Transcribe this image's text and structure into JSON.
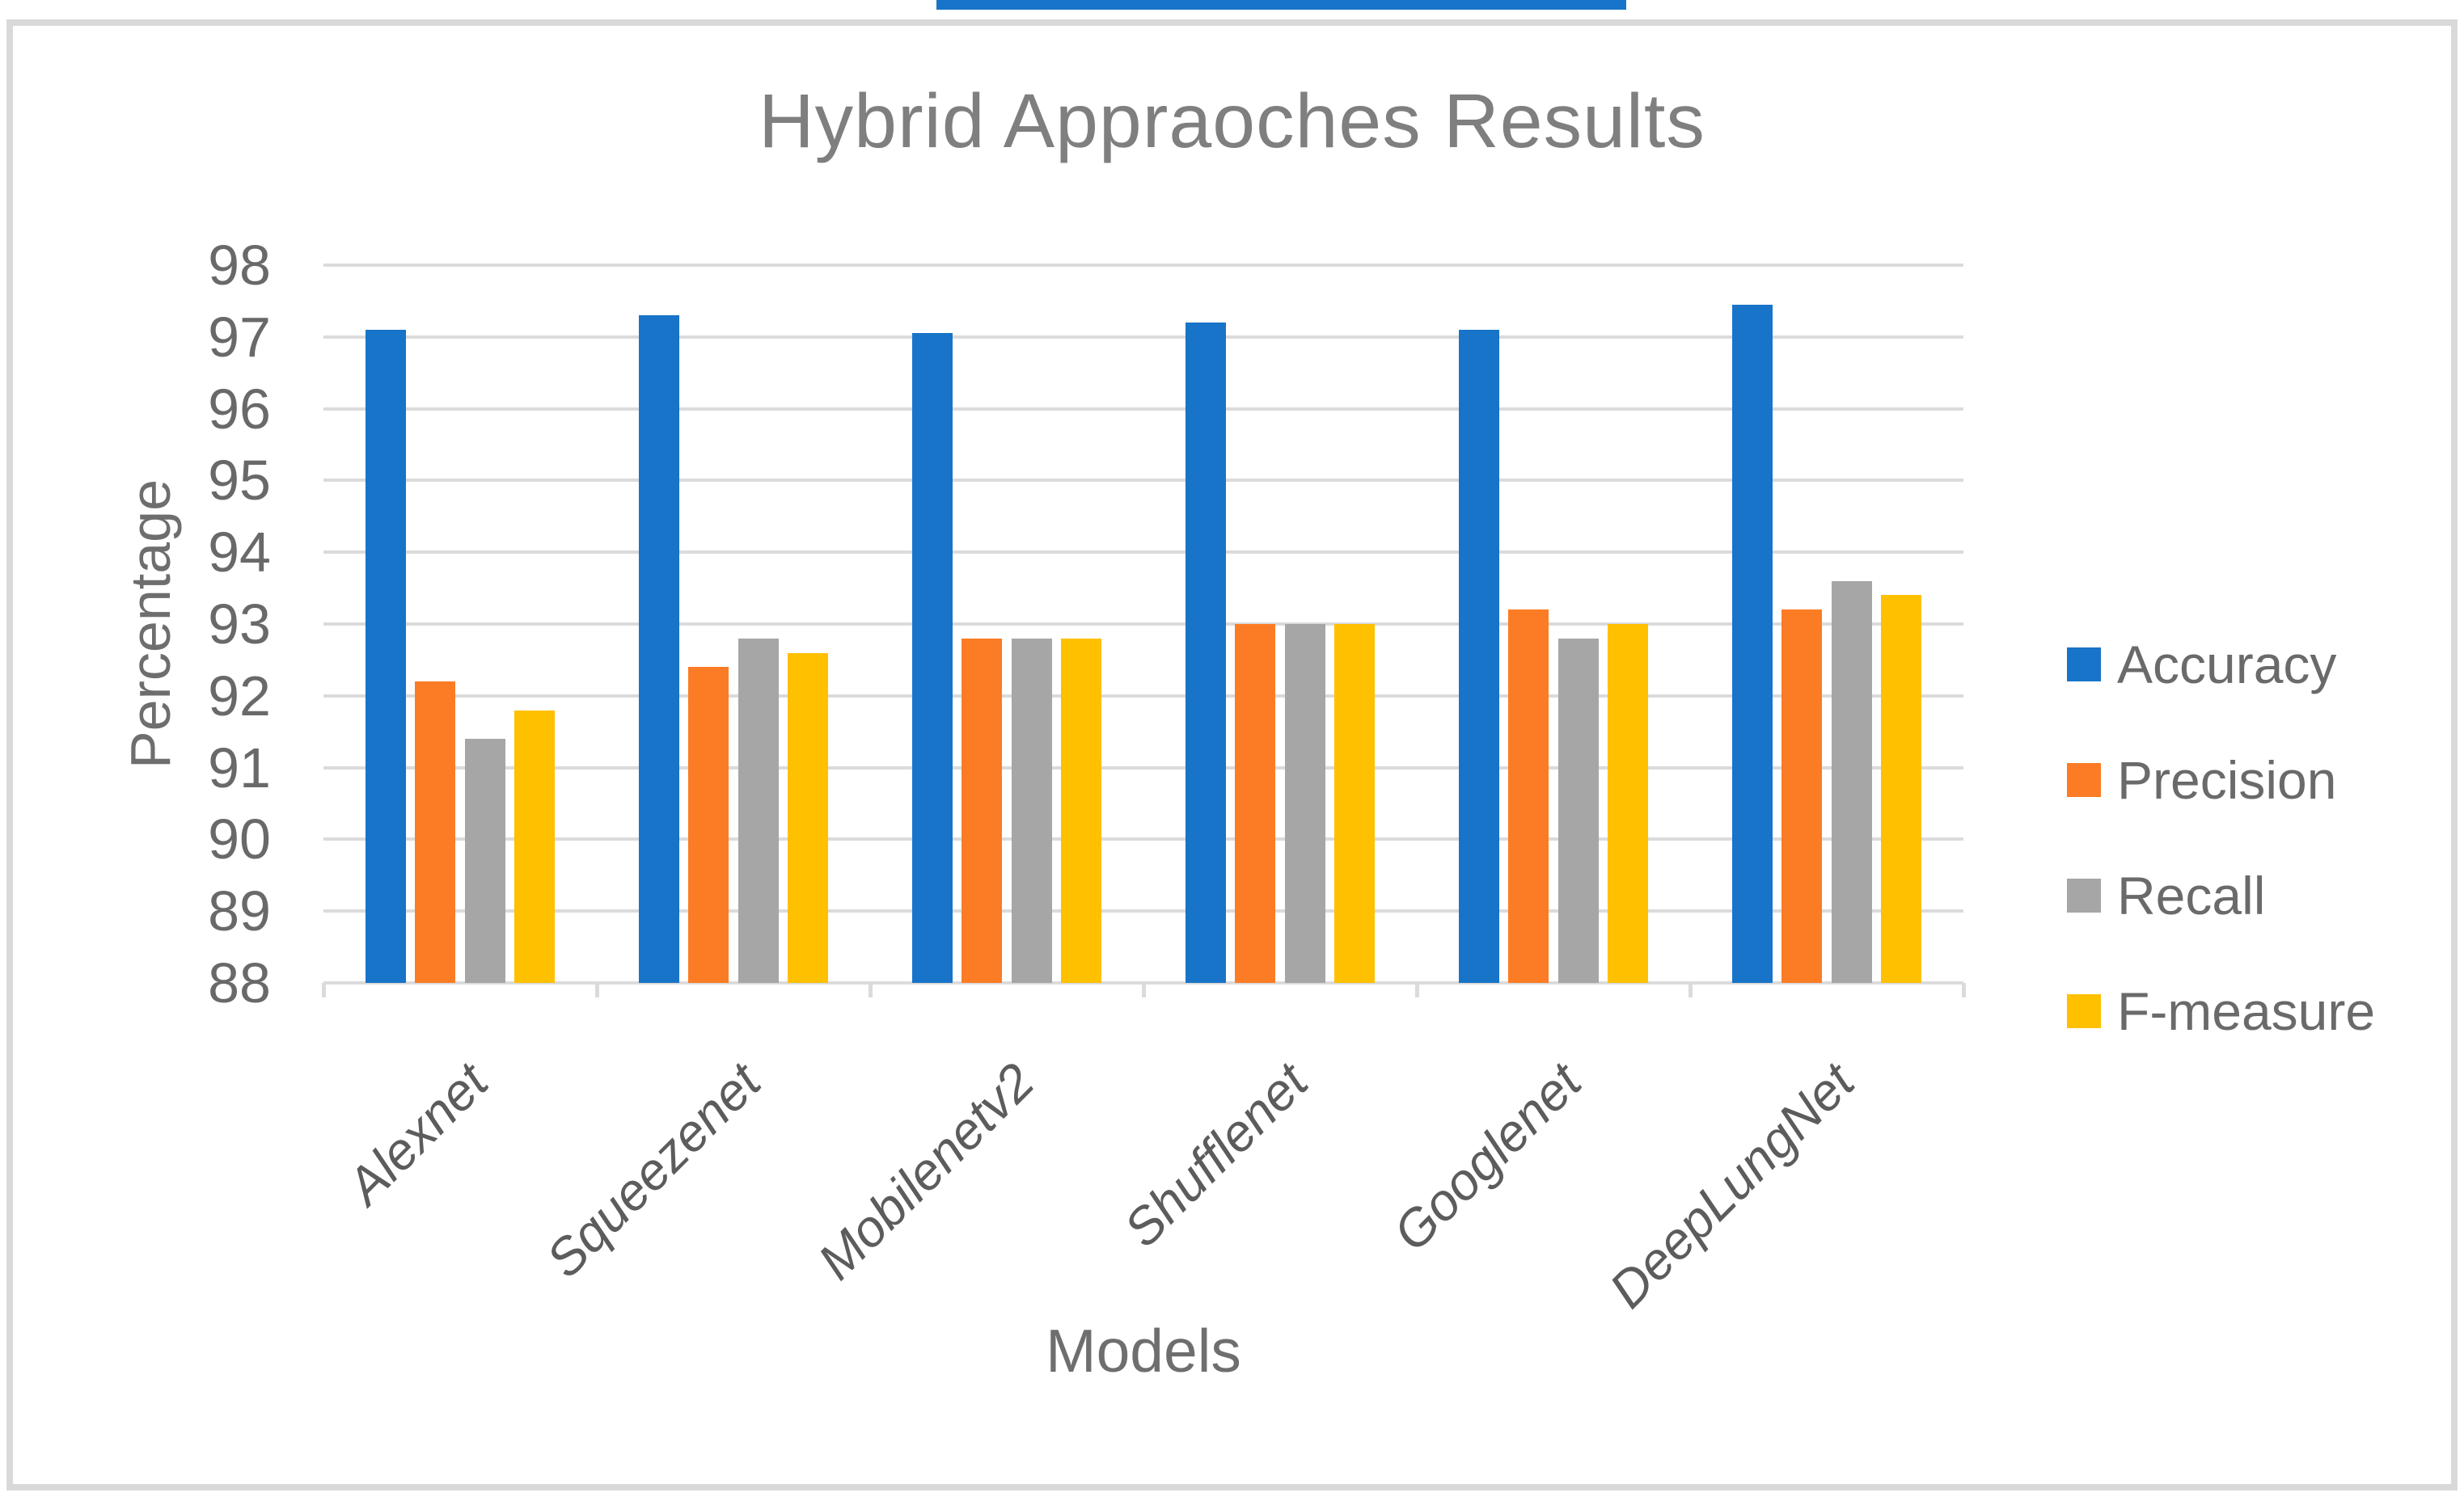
{
  "decor": {
    "top_strip_color": "#1874C8",
    "frame_border_color": "#D9D9D9",
    "gridline_color": "#DBDBDB"
  },
  "chart_data": {
    "type": "bar",
    "title": "Hybrid Appraoches Results",
    "xlabel": "Models",
    "ylabel": "Percentage",
    "ylim": [
      88,
      98
    ],
    "yticks": [
      98,
      97,
      96,
      95,
      94,
      93,
      92,
      91,
      90,
      89,
      88
    ],
    "grid": true,
    "legend_position": "right",
    "categories": [
      "Alexnet",
      "Squeezenet",
      "Mobilenetv2",
      "Shufflenet",
      "Googlenet",
      "DeepLungNet"
    ],
    "series": [
      {
        "name": "Accuracy",
        "color": "#1874C8",
        "values": [
          97.1,
          97.3,
          97.05,
          97.2,
          97.1,
          97.45
        ]
      },
      {
        "name": "Precision",
        "color": "#FB7C25",
        "values": [
          92.2,
          92.4,
          92.8,
          93.0,
          93.2,
          93.2
        ]
      },
      {
        "name": "Recall",
        "color": "#A6A6A6",
        "values": [
          91.4,
          92.8,
          92.8,
          93.0,
          92.8,
          93.6
        ]
      },
      {
        "name": "F-measure",
        "color": "#FFC000",
        "values": [
          91.8,
          92.6,
          92.8,
          93.0,
          93.0,
          93.4
        ]
      }
    ]
  }
}
